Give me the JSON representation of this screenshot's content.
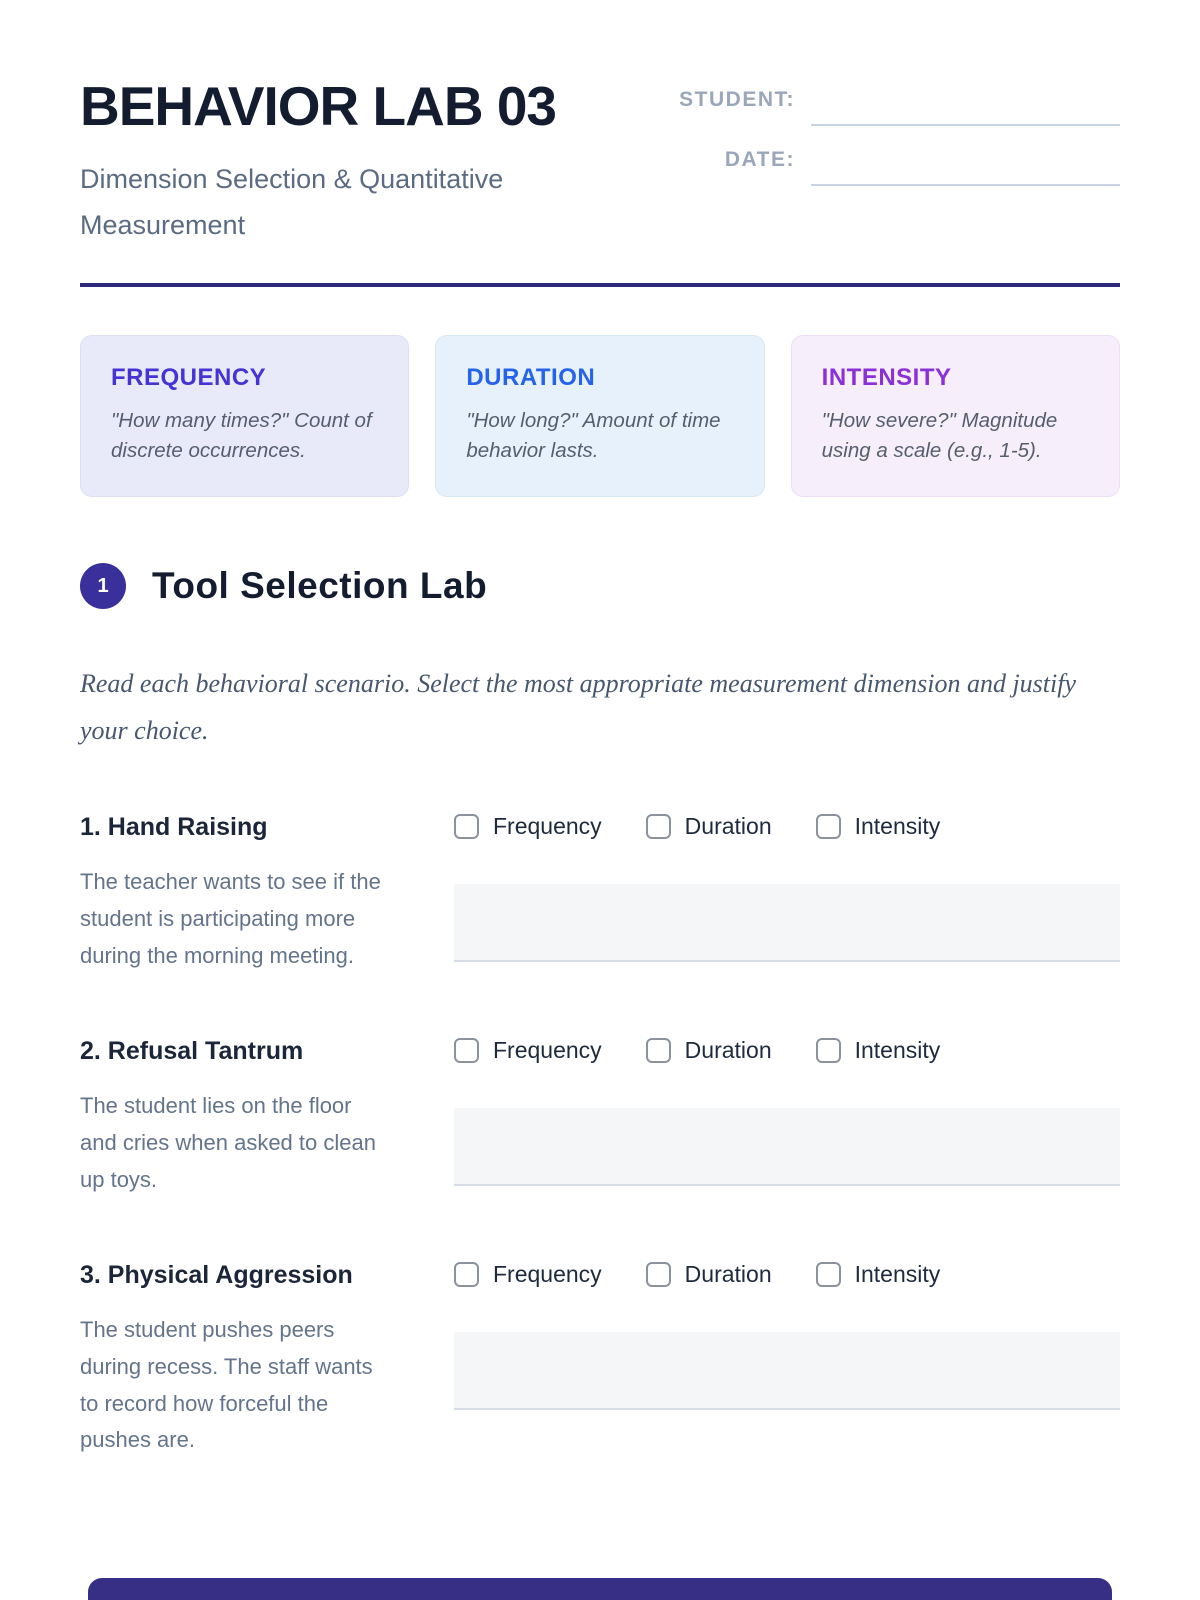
{
  "header": {
    "title": "BEHAVIOR LAB 03",
    "subtitle": "Dimension Selection & Quantitative Measurement",
    "fields": [
      {
        "label": "STUDENT:",
        "value": ""
      },
      {
        "label": "DATE:",
        "value": ""
      }
    ]
  },
  "dimension_cards": [
    {
      "name": "FREQUENCY",
      "description": "\"How many times?\" Count of discrete occurrences.",
      "accent": "#4633d4",
      "bg": "#e8eaf9"
    },
    {
      "name": "DURATION",
      "description": "\"How long?\" Amount of time behavior lasts.",
      "accent": "#2563eb",
      "bg": "#e7f1fb"
    },
    {
      "name": "INTENSITY",
      "description": "\"How severe?\" Magnitude using a scale (e.g., 1-5).",
      "accent": "#8b2fd6",
      "bg": "#f7eefb"
    }
  ],
  "section": {
    "number": "1",
    "title": "Tool Selection Lab",
    "instructions": "Read each behavioral scenario. Select the most appropriate measurement dimension and justify your choice."
  },
  "checkbox_options": [
    "Frequency",
    "Duration",
    "Intensity"
  ],
  "scenarios": [
    {
      "title": "1. Hand Raising",
      "description": "The teacher wants to see if the student is participating more during the morning meeting."
    },
    {
      "title": "2. Refusal Tantrum",
      "description": "The student lies on the floor and cries when asked to clean up toys."
    },
    {
      "title": "3. Physical Aggression",
      "description": "The student pushes peers during recess. The staff wants to record how forceful the pushes are."
    }
  ],
  "colors": {
    "top_rule": "#2d2a7d",
    "section_badge": "#39309b",
    "footer_bar": "#372f85",
    "title_text": "#141c30",
    "muted_text": "#64748b"
  }
}
